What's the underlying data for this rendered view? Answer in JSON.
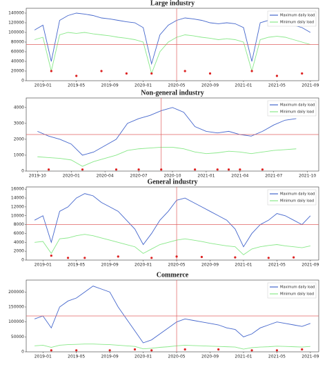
{
  "chart_data": [
    {
      "type": "line",
      "title": "Large industry",
      "x": [
        "2018-12",
        "2019-01",
        "2019-02",
        "2019-03",
        "2019-04",
        "2019-05",
        "2019-06",
        "2019-07",
        "2019-08",
        "2019-09",
        "2019-10",
        "2019-11",
        "2019-12",
        "2020-01",
        "2020-02",
        "2020-03",
        "2020-04",
        "2020-05",
        "2020-06",
        "2020-07",
        "2020-08",
        "2020-09",
        "2020-10",
        "2020-11",
        "2020-12",
        "2021-01",
        "2021-02",
        "2021-03",
        "2021-04",
        "2021-05",
        "2021-06",
        "2021-07",
        "2021-08",
        "2021-09"
      ],
      "series": [
        {
          "name": "Maximum daily load",
          "color": "#4466cc",
          "values": [
            105000,
            115000,
            40000,
            125000,
            135000,
            140000,
            138000,
            135000,
            130000,
            128000,
            125000,
            122000,
            120000,
            110000,
            35000,
            95000,
            115000,
            125000,
            130000,
            128000,
            125000,
            120000,
            118000,
            120000,
            118000,
            110000,
            40000,
            120000,
            125000,
            128000,
            125000,
            115000,
            110000,
            100000
          ]
        },
        {
          "name": "Minimum daily load",
          "color": "#88e888",
          "values": [
            85000,
            90000,
            20000,
            95000,
            100000,
            98000,
            100000,
            97000,
            95000,
            93000,
            90000,
            88000,
            85000,
            80000,
            15000,
            60000,
            80000,
            90000,
            95000,
            93000,
            90000,
            88000,
            85000,
            87000,
            85000,
            80000,
            20000,
            85000,
            90000,
            92000,
            90000,
            85000,
            80000,
            75000
          ]
        }
      ],
      "markers": {
        "color": "#dd2222",
        "x": [
          "2019-02",
          "2019-05",
          "2019-08",
          "2019-11",
          "2020-02",
          "2020-06",
          "2020-09",
          "2021-02",
          "2021-05",
          "2021-08"
        ],
        "values": [
          20000,
          10000,
          20000,
          15000,
          15000,
          20000,
          15000,
          20000,
          10000,
          15000
        ]
      },
      "xlim": [
        "2018-11",
        "2021-10"
      ],
      "xticks": [
        {
          "value": "2019-01",
          "label": "2019-01"
        },
        {
          "value": "2019-05",
          "label": "2019-05"
        },
        {
          "value": "2019-09",
          "label": "2019-09"
        },
        {
          "value": "2020-01",
          "label": "2020-01"
        },
        {
          "value": "2020-05",
          "label": "2020-05"
        },
        {
          "value": "2020-09",
          "label": "2020-09"
        },
        {
          "value": "2021-01",
          "label": "2021-01"
        },
        {
          "value": "2021-05",
          "label": "2021-05"
        },
        {
          "value": "2021-09",
          "label": "2021-09"
        }
      ],
      "ylim": [
        0,
        150000
      ],
      "yticks": [
        0,
        20000,
        40000,
        60000,
        80000,
        100000,
        120000,
        140000
      ],
      "hline": 75000,
      "vline": "2020-05",
      "refline_color": "#e06060",
      "legend": "upper right"
    },
    {
      "type": "line",
      "title": "Non-general industry",
      "x": [
        "2019-10",
        "2019-11",
        "2019-12",
        "2020-01",
        "2020-02",
        "2020-03",
        "2020-04",
        "2020-05",
        "2020-06",
        "2020-07",
        "2020-08",
        "2020-09",
        "2020-10",
        "2020-11",
        "2020-12",
        "2021-01",
        "2021-02",
        "2021-03",
        "2021-04",
        "2021-05",
        "2021-06",
        "2021-07",
        "2021-08",
        "2021-09"
      ],
      "series": [
        {
          "name": "Maximum daily load",
          "color": "#4466cc",
          "values": [
            2500,
            2200,
            2000,
            1700,
            1000,
            1200,
            1600,
            2000,
            3000,
            3300,
            3500,
            3800,
            4000,
            3700,
            2800,
            2500,
            2400,
            2500,
            2300,
            2200,
            2500,
            2900,
            3200,
            3300
          ]
        },
        {
          "name": "Minimum daily load",
          "color": "#88e888",
          "values": [
            900,
            850,
            800,
            700,
            300,
            600,
            800,
            1000,
            1300,
            1400,
            1450,
            1500,
            1500,
            1400,
            1200,
            1100,
            1150,
            1250,
            1200,
            1100,
            1200,
            1300,
            1350,
            1400
          ]
        }
      ],
      "markers": {
        "color": "#dd2222",
        "x": [
          "2019-11",
          "2020-02",
          "2020-05",
          "2020-07",
          "2020-09",
          "2020-12",
          "2021-02",
          "2021-03",
          "2021-04",
          "2021-06"
        ],
        "values": [
          100,
          100,
          100,
          100,
          100,
          100,
          100,
          100,
          100,
          100
        ]
      },
      "xlim": [
        "2019-09",
        "2021-11"
      ],
      "xticks": [
        {
          "value": "2019-10",
          "label": "2019-10"
        },
        {
          "value": "2020-01",
          "label": "2020-01"
        },
        {
          "value": "2020-04",
          "label": "2020-04"
        },
        {
          "value": "2020-07",
          "label": "2020-07"
        },
        {
          "value": "2020-10",
          "label": "2020-10"
        },
        {
          "value": "2021-01",
          "label": "2021-01"
        },
        {
          "value": "2021-04",
          "label": "2021-04"
        },
        {
          "value": "2021-07",
          "label": "2021-07"
        },
        {
          "value": "2021-10",
          "label": "2021-10"
        }
      ],
      "ylim": [
        0,
        4600
      ],
      "yticks": [
        0,
        1000,
        2000,
        3000,
        4000
      ],
      "hline": 2300,
      "vline": "2020-09",
      "refline_color": "#e06060",
      "legend": "upper right"
    },
    {
      "type": "line",
      "title": "General industry",
      "x": [
        "2018-12",
        "2019-01",
        "2019-02",
        "2019-03",
        "2019-04",
        "2019-05",
        "2019-06",
        "2019-07",
        "2019-08",
        "2019-09",
        "2019-10",
        "2019-11",
        "2019-12",
        "2020-01",
        "2020-02",
        "2020-03",
        "2020-04",
        "2020-05",
        "2020-06",
        "2020-07",
        "2020-08",
        "2020-09",
        "2020-10",
        "2020-11",
        "2020-12",
        "2021-01",
        "2021-02",
        "2021-03",
        "2021-04",
        "2021-05",
        "2021-06",
        "2021-07",
        "2021-08",
        "2021-09"
      ],
      "series": [
        {
          "name": "Maximum daily load",
          "color": "#4466cc",
          "values": [
            9000,
            10000,
            4000,
            11000,
            12000,
            14000,
            15000,
            14500,
            13000,
            12000,
            11000,
            9000,
            7000,
            3500,
            6000,
            9000,
            11000,
            13500,
            14000,
            13000,
            12000,
            11000,
            10000,
            9000,
            7000,
            3000,
            6000,
            8000,
            9000,
            10500,
            10000,
            9000,
            8000,
            10000
          ]
        },
        {
          "name": "Minimum daily load",
          "color": "#88e888",
          "values": [
            4000,
            4200,
            1500,
            4800,
            5000,
            5500,
            5800,
            5500,
            5000,
            4500,
            4000,
            3500,
            3000,
            1500,
            2500,
            3500,
            4000,
            4500,
            4800,
            4500,
            4200,
            3800,
            3500,
            3200,
            3000,
            1200,
            2500,
            3000,
            3300,
            3500,
            3200,
            3000,
            2800,
            3200
          ]
        }
      ],
      "markers": {
        "color": "#dd2222",
        "x": [
          "2019-02",
          "2019-04",
          "2019-06",
          "2019-10",
          "2020-02",
          "2020-05",
          "2020-08",
          "2020-12",
          "2021-04",
          "2021-07"
        ],
        "values": [
          1000,
          500,
          500,
          800,
          500,
          800,
          700,
          600,
          500,
          600
        ]
      },
      "xlim": [
        "2018-11",
        "2021-10"
      ],
      "xticks": [
        {
          "value": "2019-01",
          "label": "2019-01"
        },
        {
          "value": "2019-05",
          "label": "2019-05"
        },
        {
          "value": "2019-09",
          "label": "2019-09"
        },
        {
          "value": "2020-01",
          "label": "2020-01"
        },
        {
          "value": "2020-05",
          "label": "2020-05"
        },
        {
          "value": "2020-09",
          "label": "2020-09"
        },
        {
          "value": "2021-01",
          "label": "2021-01"
        },
        {
          "value": "2021-05",
          "label": "2021-05"
        },
        {
          "value": "2021-09",
          "label": "2021-09"
        }
      ],
      "ylim": [
        0,
        16500
      ],
      "yticks": [
        0,
        2000,
        4000,
        6000,
        8000,
        10000,
        12000,
        14000,
        16000
      ],
      "hline": 8000,
      "vline": "2020-05",
      "refline_color": "#e06060",
      "legend": "upper right"
    },
    {
      "type": "line",
      "title": "Commerce",
      "x": [
        "2018-12",
        "2019-01",
        "2019-02",
        "2019-03",
        "2019-04",
        "2019-05",
        "2019-06",
        "2019-07",
        "2019-08",
        "2019-09",
        "2019-10",
        "2019-11",
        "2019-12",
        "2020-01",
        "2020-02",
        "2020-03",
        "2020-04",
        "2020-05",
        "2020-06",
        "2020-07",
        "2020-08",
        "2020-09",
        "2020-10",
        "2020-11",
        "2020-12",
        "2021-01",
        "2021-02",
        "2021-03",
        "2021-04",
        "2021-05",
        "2021-06",
        "2021-07",
        "2021-08",
        "2021-09"
      ],
      "series": [
        {
          "name": "Maximum daily load",
          "color": "#4466cc",
          "values": [
            110000,
            120000,
            80000,
            150000,
            170000,
            180000,
            200000,
            220000,
            210000,
            200000,
            150000,
            110000,
            70000,
            30000,
            40000,
            60000,
            80000,
            100000,
            110000,
            105000,
            100000,
            95000,
            90000,
            80000,
            75000,
            50000,
            60000,
            80000,
            90000,
            100000,
            95000,
            90000,
            85000,
            95000
          ]
        },
        {
          "name": "Minimum daily load",
          "color": "#88e888",
          "values": [
            20000,
            22000,
            15000,
            22000,
            24000,
            25000,
            26000,
            26000,
            25000,
            24000,
            22000,
            20000,
            18000,
            10000,
            12000,
            15000,
            17000,
            20000,
            22000,
            21000,
            20000,
            19000,
            18000,
            17000,
            16000,
            9000,
            14000,
            16000,
            17000,
            19000,
            18000,
            17000,
            16000,
            18000
          ]
        }
      ],
      "markers": {
        "color": "#dd2222",
        "x": [
          "2019-02",
          "2019-05",
          "2019-09",
          "2019-12",
          "2020-02",
          "2020-06",
          "2020-10",
          "2021-02",
          "2021-05",
          "2021-08"
        ],
        "values": [
          5000,
          5000,
          5000,
          8000,
          5000,
          8000,
          8000,
          5000,
          5000,
          8000
        ]
      },
      "xlim": [
        "2018-11",
        "2021-10"
      ],
      "xticks": [
        {
          "value": "2019-01",
          "label": "2019-01"
        },
        {
          "value": "2019-05",
          "label": "2019-05"
        },
        {
          "value": "2019-09",
          "label": "2019-09"
        },
        {
          "value": "2020-01",
          "label": "2020-01"
        },
        {
          "value": "2020-05",
          "label": "2020-05"
        },
        {
          "value": "2020-09",
          "label": "2020-09"
        },
        {
          "value": "2021-01",
          "label": "2021-01"
        },
        {
          "value": "2021-05",
          "label": "2021-05"
        },
        {
          "value": "2021-09",
          "label": "2021-09"
        }
      ],
      "ylim": [
        0,
        240000
      ],
      "yticks": [
        0,
        50000,
        100000,
        150000,
        200000
      ],
      "hline": 120000,
      "vline": "2020-05",
      "refline_color": "#e06060",
      "legend": "upper right"
    }
  ]
}
